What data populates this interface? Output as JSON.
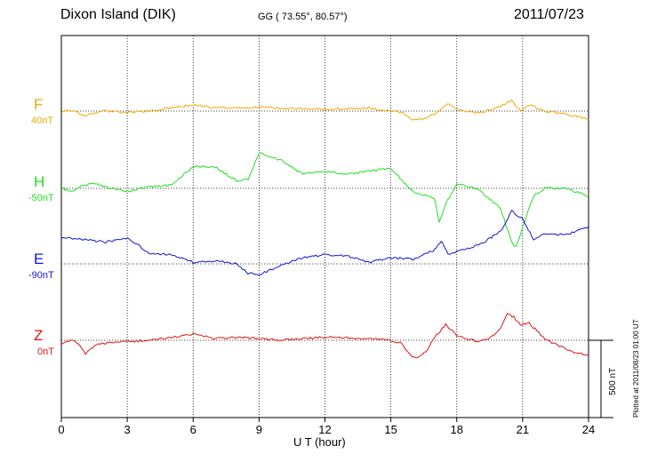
{
  "header": {
    "station": "Dixon Island (DIK)",
    "coords": "GG ( 73.55°,  80.57°)",
    "date": "2011/07/23"
  },
  "footer": {
    "plotted": "Plotted at 2011/08/23 01:00 UT"
  },
  "colors": {
    "F": "#f0a800",
    "H": "#22dd22",
    "E": "#1414cc",
    "Z": "#e01414"
  },
  "chart_data": {
    "type": "line",
    "xlabel": "U T (hour)",
    "xlim": [
      0,
      24
    ],
    "xticks": [
      "0",
      "3",
      "6",
      "9",
      "12",
      "15",
      "18",
      "21",
      "24"
    ],
    "scale_bar": {
      "value": 500,
      "label": "500 nT"
    },
    "grid": true,
    "series": [
      {
        "name": "F",
        "baseline_label": "40nT",
        "baseline": 40,
        "x": [
          0,
          0.5,
          1,
          1.5,
          2,
          3,
          4,
          5,
          6,
          7,
          8,
          9,
          10,
          11,
          12,
          13,
          14,
          15,
          15.5,
          16,
          16.3,
          16.6,
          17,
          17.3,
          17.6,
          18,
          19,
          20,
          20.5,
          20.9,
          21.3,
          22,
          23,
          24
        ],
        "y": [
          40,
          45,
          10,
          30,
          40,
          30,
          40,
          60,
          80,
          60,
          60,
          65,
          60,
          55,
          50,
          55,
          60,
          40,
          30,
          -20,
          -15,
          -10,
          20,
          55,
          85,
          50,
          25,
          70,
          110,
          40,
          80,
          40,
          20,
          -10
        ]
      },
      {
        "name": "H",
        "baseline_label": "-50nT",
        "baseline": -50,
        "x": [
          0,
          0.5,
          1,
          1.5,
          2,
          3,
          4,
          5,
          6,
          7,
          8,
          8.5,
          9,
          10,
          11,
          12,
          13,
          14,
          15,
          16,
          16.5,
          17,
          17.2,
          17.5,
          18,
          19,
          20,
          20.5,
          20.7,
          21,
          21.5,
          22,
          23,
          24
        ],
        "y": [
          -50,
          -70,
          -30,
          -20,
          -40,
          -70,
          -40,
          -30,
          90,
          90,
          -5,
          10,
          180,
          130,
          40,
          60,
          40,
          60,
          80,
          -70,
          -90,
          -120,
          -270,
          -150,
          -20,
          -60,
          -180,
          -400,
          -430,
          -300,
          -100,
          -50,
          -50,
          -100
        ]
      },
      {
        "name": "E",
        "baseline_label": "-90nT",
        "baseline": -90,
        "x": [
          0,
          1,
          2,
          3,
          4,
          5,
          6,
          7,
          8,
          8.5,
          9,
          10,
          11,
          12,
          13,
          14,
          15,
          16,
          17,
          17.3,
          17.6,
          18,
          19,
          20,
          20.5,
          21,
          21.5,
          22,
          23,
          24
        ],
        "y": [
          80,
          70,
          50,
          80,
          -20,
          -30,
          -80,
          -70,
          -90,
          -150,
          -160,
          -100,
          -50,
          -30,
          -40,
          -80,
          -50,
          -60,
          0,
          60,
          -30,
          -10,
          30,
          120,
          250,
          200,
          70,
          100,
          100,
          150
        ]
      },
      {
        "name": "Z",
        "baseline_label": "0nT",
        "baseline": 0,
        "x": [
          0,
          0.6,
          1.1,
          1.6,
          2,
          3,
          4,
          5,
          6,
          7,
          8,
          9,
          10,
          11,
          12,
          13,
          14,
          15,
          15.5,
          15.9,
          16.2,
          16.6,
          17,
          17.5,
          18,
          19,
          19.5,
          20,
          20.3,
          20.6,
          20.9,
          21.3,
          22,
          23,
          24
        ],
        "y": [
          -20,
          0,
          -85,
          -30,
          -20,
          -10,
          0,
          20,
          40,
          10,
          20,
          10,
          0,
          10,
          20,
          15,
          10,
          0,
          -20,
          -100,
          -120,
          -70,
          20,
          100,
          30,
          -10,
          10,
          80,
          170,
          150,
          100,
          110,
          10,
          -60,
          -100
        ]
      }
    ]
  }
}
